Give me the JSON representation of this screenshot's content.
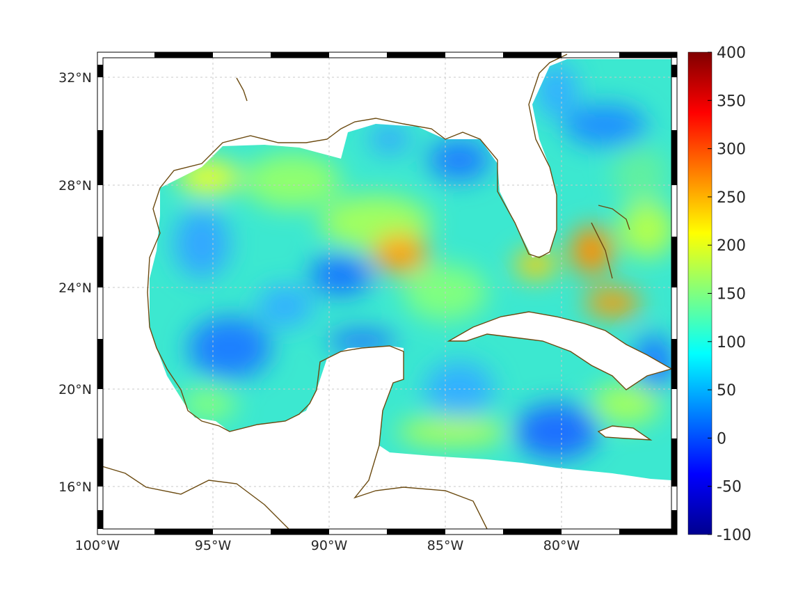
{
  "map": {
    "x_ticks": [
      "100°W",
      "95°W",
      "90°W",
      "85°W",
      "80°W"
    ],
    "y_ticks": [
      "32°N",
      "28°N",
      "24°N",
      "20°N",
      "16°N"
    ],
    "colorbar": {
      "ticks": [
        "400",
        "350",
        "300",
        "250",
        "200",
        "150",
        "100",
        "50",
        "0",
        "-50",
        "-100"
      ],
      "range": [
        -100,
        400
      ],
      "colormap": "jet"
    },
    "colors": {
      "coast": "#6b4a10",
      "grid": "#c8c8c8"
    }
  }
}
